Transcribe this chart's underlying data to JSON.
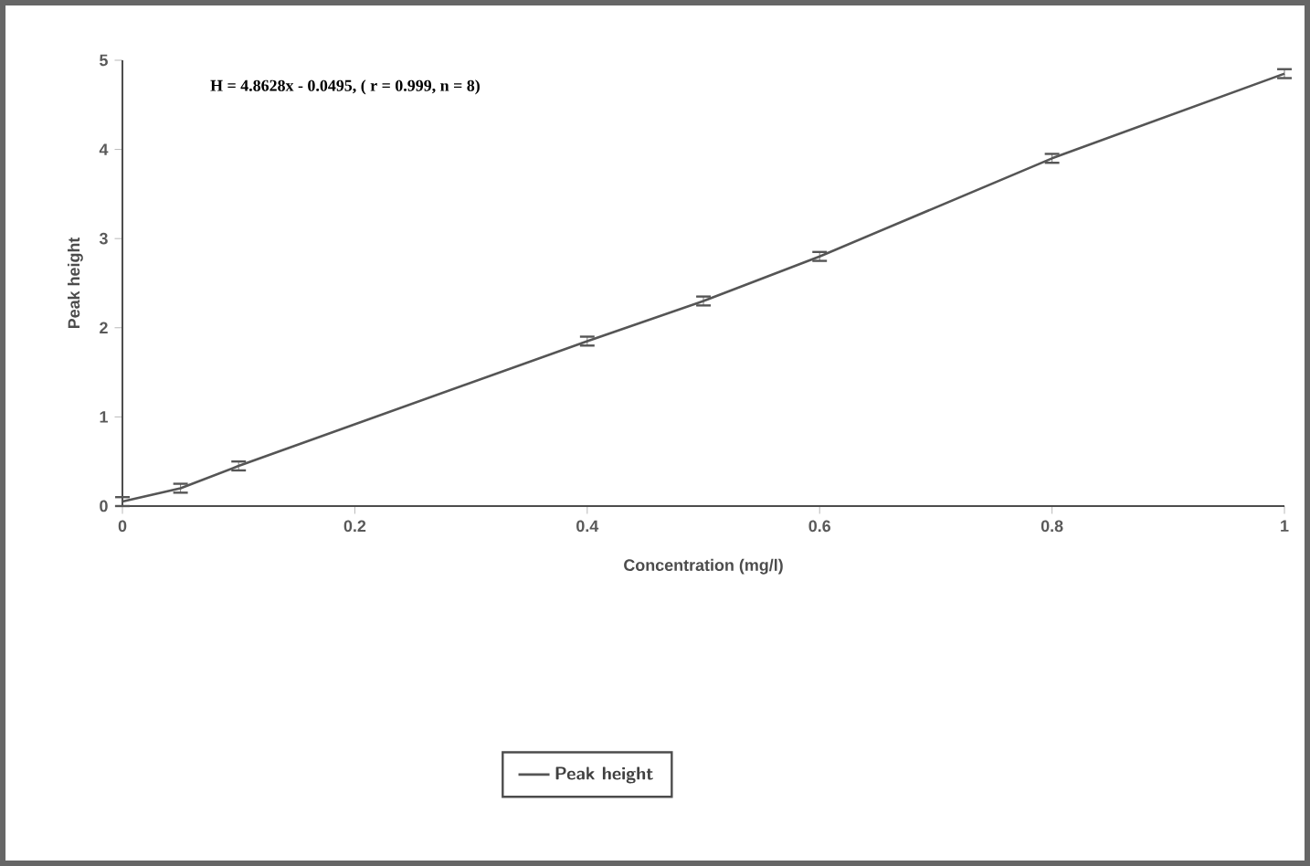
{
  "chart_data": {
    "type": "line",
    "xlabel": "Concentration (mg/l)",
    "ylabel": "Peak height",
    "annotations": [
      "H = 4.8628x - 0.0495, ( r = 0.999, n = 8)"
    ],
    "x": [
      0,
      0.05,
      0.1,
      0.4,
      0.5,
      0.6,
      0.8,
      1.0
    ],
    "series": [
      {
        "name": "Peak height",
        "color": "#555555",
        "values": [
          0.05,
          0.2,
          0.45,
          1.85,
          2.3,
          2.8,
          3.9,
          4.85
        ],
        "errors": [
          0.05,
          0.05,
          0.05,
          0.05,
          0.05,
          0.05,
          0.05,
          0.05
        ]
      }
    ],
    "xlim": [
      0,
      1
    ],
    "ylim": [
      0,
      5
    ],
    "xticks": [
      0,
      0.2,
      0.4,
      0.6,
      0.8,
      1
    ],
    "yticks": [
      0,
      1,
      2,
      3,
      4,
      5
    ],
    "legend": "bottom",
    "grid": false,
    "marker": "none",
    "line_style": "solid"
  }
}
